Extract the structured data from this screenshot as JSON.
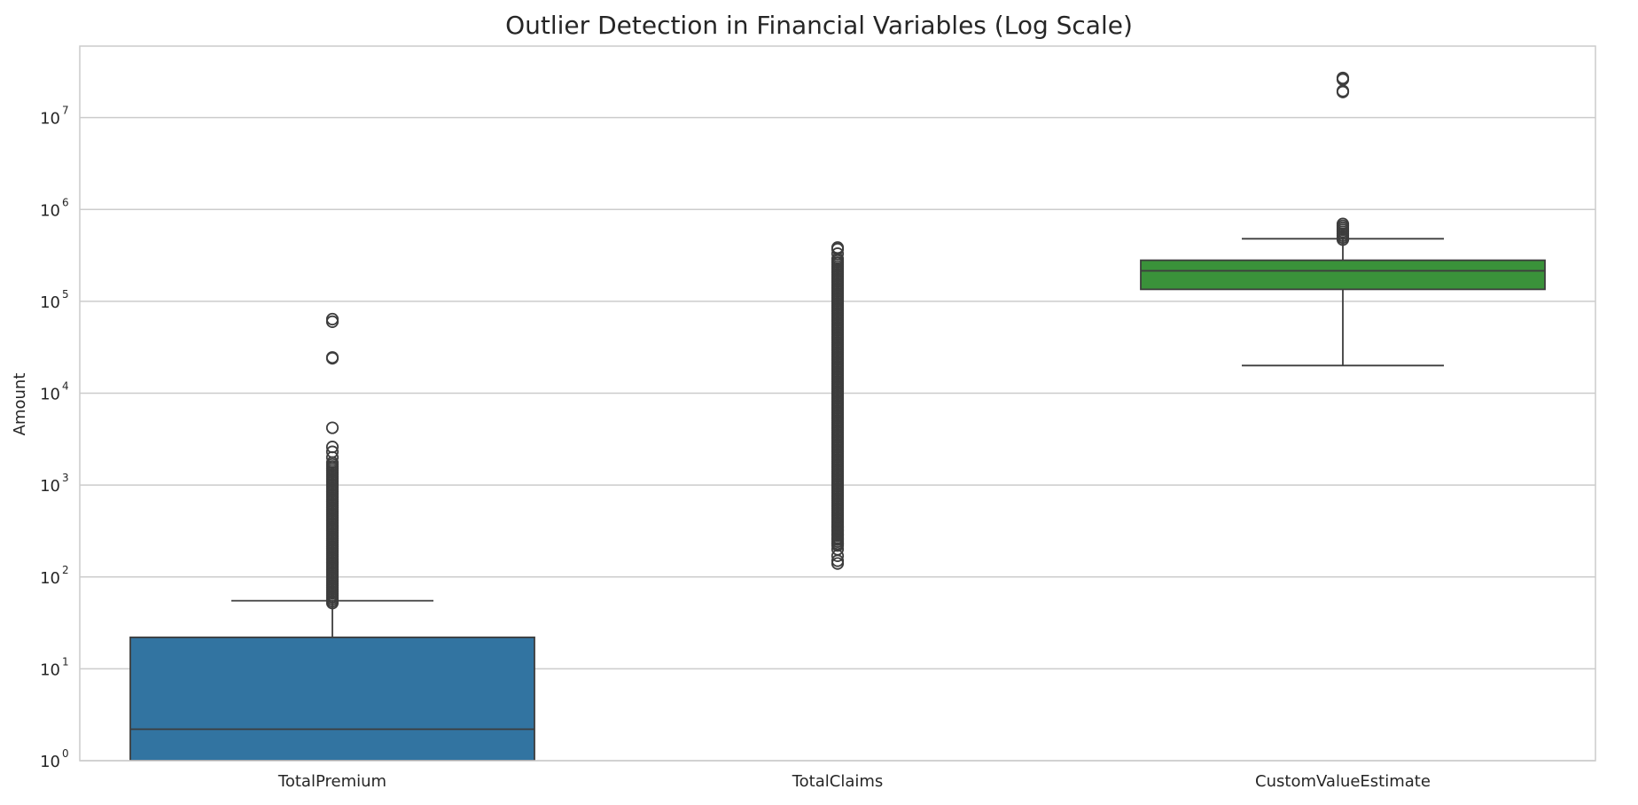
{
  "chart_data": {
    "type": "boxplot",
    "title": "Outlier Detection in Financial Variables (Log Scale)",
    "xlabel": "",
    "ylabel": "Amount",
    "yscale": "log",
    "ylim": [
      1,
      60000000
    ],
    "grid": "horizontal",
    "y_ticks": [
      {
        "base": "10",
        "exp": "0",
        "value": 1
      },
      {
        "base": "10",
        "exp": "1",
        "value": 10
      },
      {
        "base": "10",
        "exp": "2",
        "value": 100
      },
      {
        "base": "10",
        "exp": "3",
        "value": 1000
      },
      {
        "base": "10",
        "exp": "4",
        "value": 10000
      },
      {
        "base": "10",
        "exp": "5",
        "value": 100000
      },
      {
        "base": "10",
        "exp": "6",
        "value": 1000000
      },
      {
        "base": "10",
        "exp": "7",
        "value": 10000000
      }
    ],
    "categories": [
      "TotalPremium",
      "TotalClaims",
      "CustomValueEstimate"
    ],
    "boxes": [
      {
        "category": "TotalPremium",
        "color": "#3274a1",
        "whisker_low": 0.5,
        "q1": 0.5,
        "median": 2.2,
        "q3": 22,
        "whisker_high": 55,
        "outlier_band": [
          52,
          1800
        ],
        "outliers": [
          2000,
          2300,
          2600,
          4200,
          24000,
          24500,
          60000,
          64000
        ]
      },
      {
        "category": "TotalClaims",
        "color": "#3a923a",
        "whisker_low": 0,
        "q1": 0,
        "median": 0,
        "q3": 0,
        "whisker_high": 0,
        "outlier_band": [
          220,
          300000
        ],
        "outliers": [
          140,
          150,
          170,
          200,
          230,
          260,
          290,
          320,
          350,
          330000,
          370000,
          385000
        ]
      },
      {
        "category": "CustomValueEstimate",
        "color": "#3a923a",
        "whisker_low": 20000,
        "q1": 135000,
        "median": 215000,
        "q3": 280000,
        "whisker_high": 480000,
        "outlier_band": [
          470000,
          700000
        ],
        "outliers": [
          19000000,
          19500000,
          26000000,
          27000000
        ]
      }
    ]
  }
}
